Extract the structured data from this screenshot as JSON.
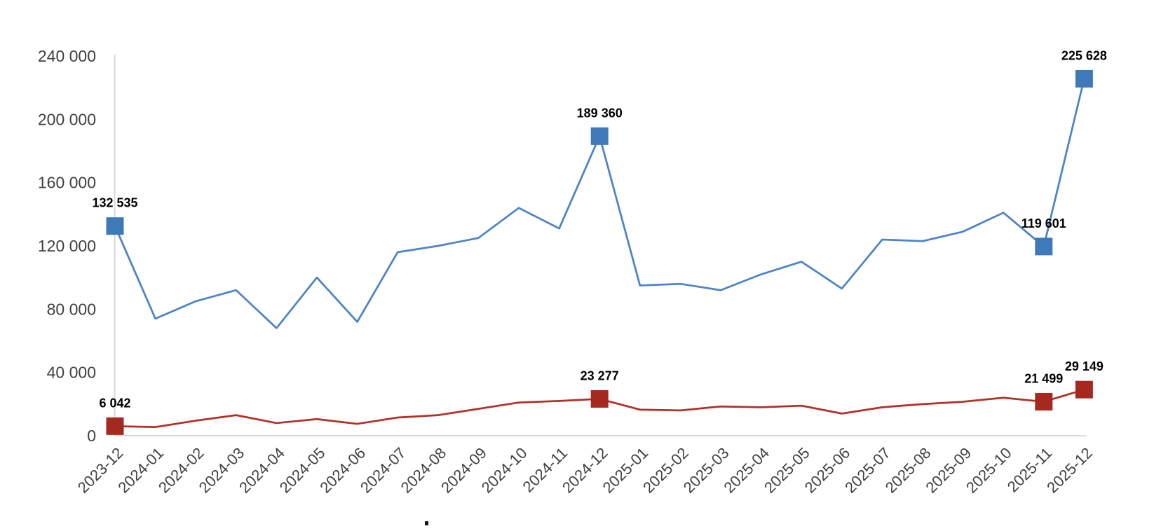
{
  "chart_data": {
    "type": "line",
    "title": "",
    "xlabel": "",
    "ylabel": "",
    "grid": false,
    "legend": "none",
    "number_format": "space thousands separator",
    "categories": [
      "2023-12",
      "2024-01",
      "2024-02",
      "2024-03",
      "2024-04",
      "2024-05",
      "2024-06",
      "2024-07",
      "2024-08",
      "2024-09",
      "2024-10",
      "2024-11",
      "2024-12",
      "2025-01",
      "2025-02",
      "2025-03",
      "2025-04",
      "2025-05",
      "2025-06",
      "2025-07",
      "2025-08",
      "2025-09",
      "2025-10",
      "2025-11",
      "2025-12"
    ],
    "x_axis": {
      "label_rotation_deg": -45
    },
    "y_axis": {
      "min": 0,
      "max": 240000,
      "tick_step": 40000,
      "tick_values": [
        0,
        40000,
        80000,
        120000,
        160000,
        200000,
        240000
      ],
      "tick_labels": [
        "0",
        "40 000",
        "80 000",
        "120 000",
        "160 000",
        "200 000",
        "240 000"
      ]
    },
    "series": [
      {
        "name": "series-blue",
        "color": "#4C84C6",
        "marker_color": "#3E7AB9",
        "marker": "square",
        "values": [
          132535,
          74000,
          85000,
          92000,
          68000,
          100000,
          72000,
          116000,
          120000,
          125000,
          144000,
          131000,
          189360,
          95000,
          96000,
          92000,
          102000,
          110000,
          93000,
          124000,
          123000,
          129000,
          141000,
          119601,
          225628
        ],
        "labels": [
          "132 535",
          null,
          null,
          null,
          null,
          null,
          null,
          null,
          null,
          null,
          null,
          null,
          "189 360",
          null,
          null,
          null,
          null,
          null,
          null,
          null,
          null,
          null,
          null,
          "119 601",
          "225 628"
        ]
      },
      {
        "name": "series-red",
        "color": "#B13127",
        "marker_color": "#A6291F",
        "marker": "square",
        "values": [
          6042,
          5500,
          9500,
          13000,
          8000,
          10500,
          7500,
          11500,
          13000,
          17000,
          21000,
          22000,
          23277,
          16500,
          16000,
          18500,
          18000,
          19000,
          14000,
          18000,
          20000,
          21500,
          24000,
          21499,
          29149
        ],
        "labels": [
          "6 042",
          null,
          null,
          null,
          null,
          null,
          null,
          null,
          null,
          null,
          null,
          null,
          "23 277",
          null,
          null,
          null,
          null,
          null,
          null,
          null,
          null,
          null,
          null,
          "21 499",
          "29 149"
        ]
      }
    ],
    "labeled_points": [
      {
        "series": "series-blue",
        "category": "2023-12",
        "label": "132 535",
        "value": 132535
      },
      {
        "series": "series-blue",
        "category": "2024-12",
        "label": "189 360",
        "value": 189360
      },
      {
        "series": "series-blue",
        "category": "2025-11",
        "label": "119 601",
        "value": 119601
      },
      {
        "series": "series-blue",
        "category": "2025-12",
        "label": "225 628",
        "value": 225628
      },
      {
        "series": "series-red",
        "category": "2023-12",
        "label": "6 042",
        "value": 6042
      },
      {
        "series": "series-red",
        "category": "2024-12",
        "label": "23 277",
        "value": 23277
      },
      {
        "series": "series-red",
        "category": "2025-11",
        "label": "21 499",
        "value": 21499
      },
      {
        "series": "series-red",
        "category": "2025-12",
        "label": "29 149",
        "value": 29149
      }
    ]
  },
  "styles": {
    "background": "#ffffff",
    "axis_line": "#D9D9D9",
    "tick_text": "#404040",
    "data_label_text": "#000000",
    "edge_dot": "#141414"
  }
}
